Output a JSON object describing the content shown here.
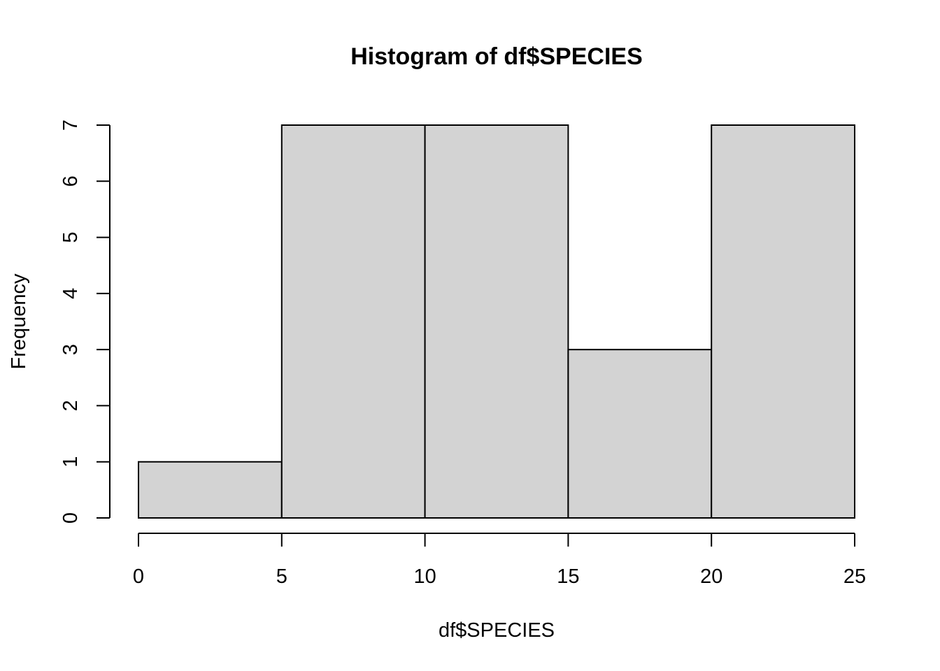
{
  "chart_data": {
    "type": "bar",
    "title": "Histogram of df$SPECIES",
    "xlabel": "df$SPECIES",
    "ylabel": "Frequency",
    "bins": [
      {
        "start": 0,
        "end": 5,
        "count": 1
      },
      {
        "start": 5,
        "end": 10,
        "count": 7
      },
      {
        "start": 10,
        "end": 15,
        "count": 7
      },
      {
        "start": 15,
        "end": 20,
        "count": 3
      },
      {
        "start": 20,
        "end": 25,
        "count": 7
      }
    ],
    "x_ticks": [
      0,
      5,
      10,
      15,
      20,
      25
    ],
    "y_ticks": [
      0,
      1,
      2,
      3,
      4,
      5,
      6,
      7
    ],
    "xlim": [
      0,
      25
    ],
    "ylim": [
      0,
      7
    ],
    "bar_color": "#d3d3d3",
    "grid": false
  }
}
